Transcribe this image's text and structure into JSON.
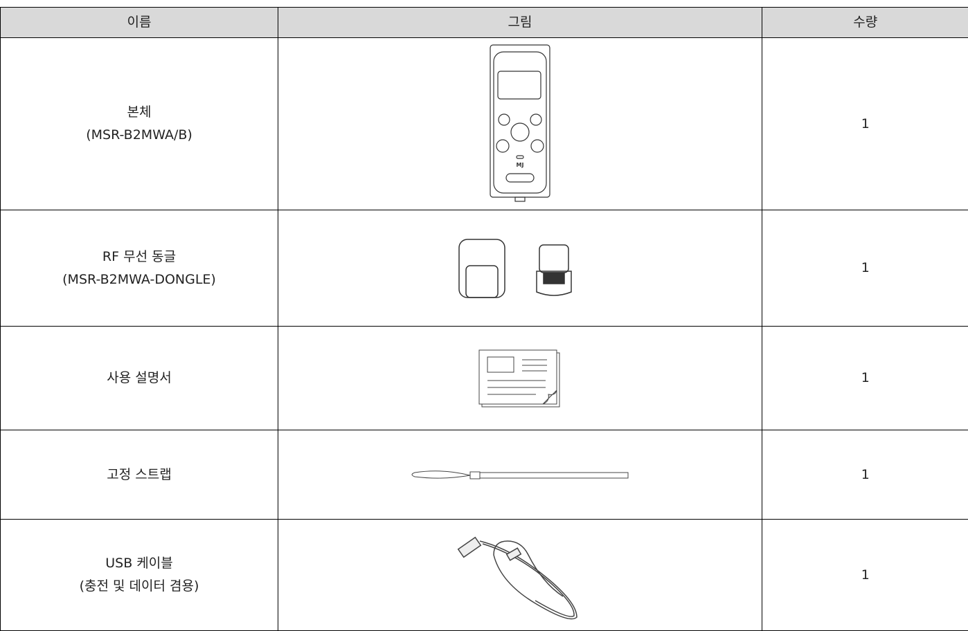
{
  "table": {
    "header": [
      "이름",
      "그림",
      "수량"
    ],
    "rows": [
      {
        "name": [
          "본체",
          "(MSR-B2MWA/B)"
        ],
        "quantity": 1
      },
      {
        "name": [
          "RF 무선 동글",
          "(MSR-B2MWA-DONGLE)"
        ],
        "quantity": 1
      },
      {
        "name": [
          "사용 설명서"
        ],
        "quantity": 1
      },
      {
        "name": [
          "고정 스트랩"
        ],
        "quantity": 1
      },
      {
        "name": [
          "USB 케이블",
          "(충전 및 데이터 겸용)"
        ],
        "quantity": 1
      }
    ]
  }
}
